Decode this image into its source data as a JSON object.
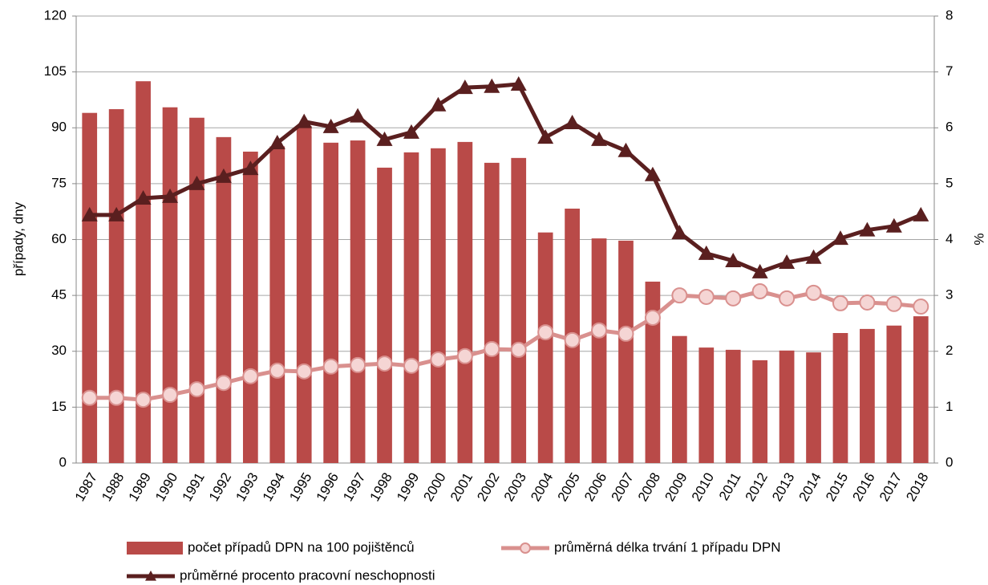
{
  "chart_data": {
    "type": "bar",
    "y_label": "případy, dny",
    "y2_label": "%",
    "categories": [
      "1987",
      "1988",
      "1989",
      "1990",
      "1991",
      "1992",
      "1993",
      "1994",
      "1995",
      "1996",
      "1997",
      "1998",
      "1999",
      "2000",
      "2001",
      "2002",
      "2003",
      "2004",
      "2005",
      "2006",
      "2007",
      "2008",
      "2009",
      "2010",
      "2011",
      "2012",
      "2013",
      "2014",
      "2015",
      "2016",
      "2017",
      "2018"
    ],
    "series": [
      {
        "name": "počet případů DPN na 100 pojištěnců",
        "type": "bar",
        "color": "#b94a48",
        "values": [
          94,
          95,
          102.5,
          95.5,
          92.7,
          87.5,
          83.6,
          85,
          90.5,
          86,
          86.6,
          79.3,
          83.4,
          84.5,
          86.2,
          80.6,
          81.9,
          61.9,
          68.3,
          60.3,
          59.7,
          48.7,
          34.1,
          31,
          30.4,
          27.6,
          30.2,
          29.7,
          34.9,
          36,
          36.9,
          39.4
        ]
      },
      {
        "name": "průměrná délka trvání 1 případu DPN",
        "type": "line",
        "marker": "circle",
        "color": "#d9908e",
        "values": [
          17.5,
          17.5,
          17,
          18.3,
          19.8,
          21.5,
          23.3,
          24.8,
          24.6,
          25.9,
          26.3,
          26.7,
          26.1,
          27.8,
          28.7,
          30.6,
          30.4,
          35.1,
          33,
          35.6,
          34.7,
          39,
          45,
          44.6,
          44.2,
          46.1,
          44.2,
          45.7,
          42.9,
          43.1,
          42.7,
          42
        ]
      },
      {
        "name": "průměrné procento pracovní neschopnosti",
        "type": "line",
        "marker": "triangle",
        "color": "#5a1f1f",
        "axis": "y2",
        "values": [
          4.44,
          4.44,
          4.74,
          4.77,
          5.0,
          5.13,
          5.27,
          5.73,
          6.11,
          6.02,
          6.21,
          5.79,
          5.92,
          6.41,
          6.72,
          6.74,
          6.78,
          5.83,
          6.09,
          5.79,
          5.59,
          5.16,
          4.12,
          3.75,
          3.62,
          3.42,
          3.59,
          3.68,
          4.02,
          4.17,
          4.24,
          4.44
        ]
      }
    ],
    "ylim": [
      0,
      120
    ],
    "yticks": [
      0,
      15,
      30,
      45,
      60,
      75,
      90,
      105,
      120
    ],
    "y2lim": [
      0,
      8
    ],
    "y2ticks": [
      0,
      1,
      2,
      3,
      4,
      5,
      6,
      7,
      8
    ],
    "grid": true
  }
}
